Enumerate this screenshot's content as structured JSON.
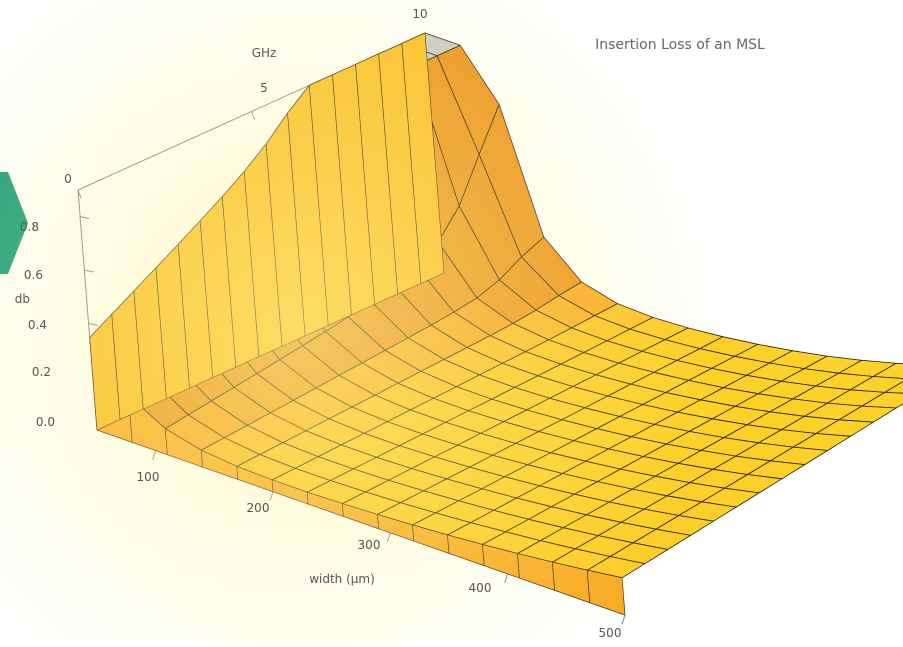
{
  "colors": {
    "accent_tab": "#1a9e7d",
    "surface_light": "#ffe12a",
    "surface_mid": "#f8a524",
    "surface_dark": "#c96a0f",
    "cap": "#c9c9c9",
    "mesh": "#2a2018",
    "axis": "#808080"
  },
  "chart_data": {
    "type": "surface3d",
    "title": "Insertion Loss of an MSL",
    "xlabel": "width (μm)",
    "ylabel": "GHz",
    "zlabel": "db",
    "x_ticks": [
      "100",
      "200",
      "300",
      "400",
      "500"
    ],
    "y_ticks": [
      "0",
      "5",
      "10"
    ],
    "z_ticks": [
      "0.0",
      "0.2",
      "0.4",
      "0.6",
      "0.8"
    ],
    "xlim": [
      50,
      500
    ],
    "ylim": [
      0,
      10
    ],
    "zlim": [
      0,
      0.9
    ],
    "clipped_region": "high-loss values at narrow width and high frequency are cut off at db = 0.9 (grey cap)",
    "mesh_lines": 15,
    "boxed": true,
    "grid": false,
    "legend": "none",
    "features": {
      "ridge": "db rises steeply as width approaches 50 μm",
      "valley": "minimum loss near width 200–250 μm at 10 GHz",
      "rise_right": "loss grows again towards width 500 μm"
    }
  }
}
